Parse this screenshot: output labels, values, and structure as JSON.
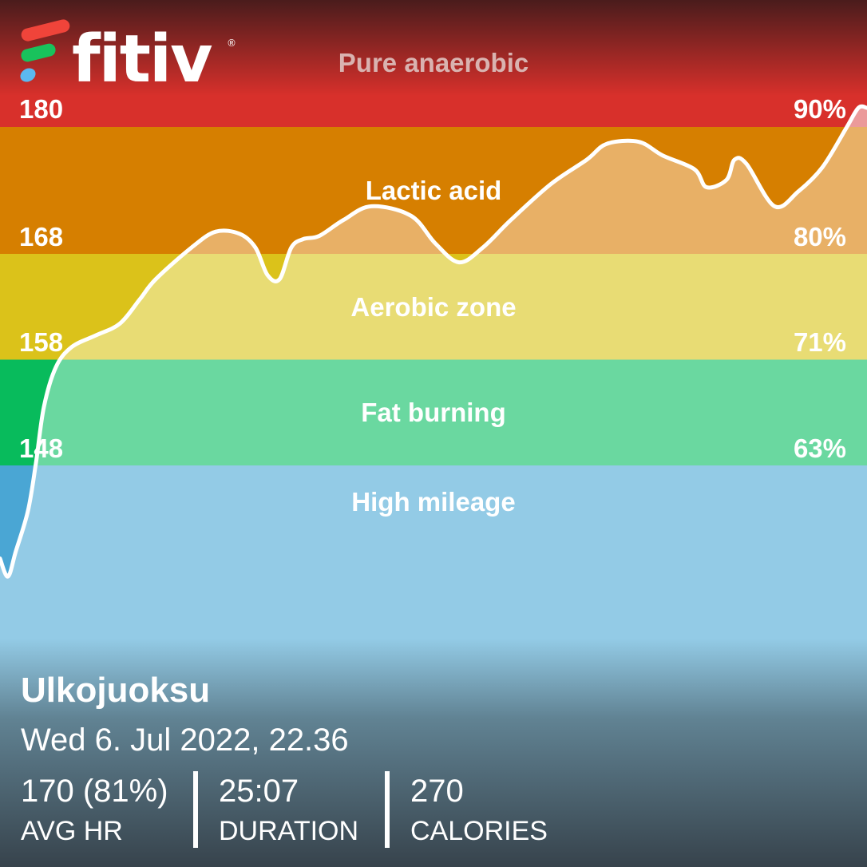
{
  "brand": {
    "name": "fitiv",
    "registered": "®",
    "logo_colors": [
      "#f0443a",
      "#19c25c",
      "#5bb8f0"
    ]
  },
  "chart_data": {
    "type": "area",
    "title": "",
    "xlabel": "",
    "ylabel": "",
    "x_unit": "minutes",
    "xlim": [
      0,
      25.12
    ],
    "ylim": [
      137,
      192
    ],
    "grid": false,
    "zones": [
      {
        "name": "Pure anaerobic",
        "min_hr": 180,
        "max_hr": 192,
        "color": "#d8302b",
        "fill_color": "#eb9a9a"
      },
      {
        "name": "Lactic acid",
        "min_hr": 168,
        "max_hr": 180,
        "color": "#d67f00",
        "fill_color": "#e8b066"
      },
      {
        "name": "Aerobic zone",
        "min_hr": 158,
        "max_hr": 168,
        "color": "#dbc21a",
        "fill_color": "#e8dc74"
      },
      {
        "name": "Fat burning",
        "min_hr": 148,
        "max_hr": 158,
        "color": "#08bb5c",
        "fill_color": "#6ad8a0"
      },
      {
        "name": "High mileage",
        "min_hr": 137,
        "max_hr": 148,
        "color": "#4aa6d4",
        "fill_color": "#93cbe6"
      }
    ],
    "hr_ticks": [
      {
        "hr": "180",
        "pct": "90%"
      },
      {
        "hr": "168",
        "pct": "80%"
      },
      {
        "hr": "158",
        "pct": "71%"
      },
      {
        "hr": "148",
        "pct": "63%"
      }
    ],
    "line_color": "#ffffff",
    "x": [
      0,
      0.23,
      0.46,
      0.81,
      1.04,
      1.27,
      1.62,
      2.08,
      2.78,
      3.47,
      4.05,
      4.51,
      5.55,
      6.25,
      6.94,
      7.4,
      7.75,
      8.1,
      8.44,
      8.79,
      9.25,
      9.95,
      10.76,
      11.91,
      12.61,
      13.3,
      13.99,
      14.8,
      15.96,
      17.0,
      17.58,
      18.5,
      19.2,
      20.12,
      20.47,
      21.05,
      21.28,
      21.63,
      22.44,
      23.13,
      23.83,
      24.52,
      24.87,
      25.12
    ],
    "y": [
      139.2,
      137.5,
      139.9,
      143.7,
      148.2,
      153.5,
      157.3,
      159.2,
      160.3,
      161.4,
      163.7,
      165.6,
      168.6,
      170.1,
      169.9,
      168.6,
      166.0,
      165.6,
      168.6,
      169.4,
      169.7,
      171.2,
      172.5,
      171.6,
      169.0,
      167.2,
      168.6,
      171.2,
      174.6,
      176.9,
      178.4,
      178.6,
      177.3,
      176.0,
      174.3,
      175.0,
      176.9,
      176.5,
      172.5,
      173.9,
      176.2,
      179.9,
      181.8,
      181.8
    ]
  },
  "workout": {
    "title": "Ulkojuoksu",
    "date": "Wed 6. Jul 2022, 22.36",
    "stats": [
      {
        "value": "170 (81%)",
        "label": "AVG HR"
      },
      {
        "value": "25:07",
        "label": "DURATION"
      },
      {
        "value": "270",
        "label": "CALORIES"
      }
    ]
  }
}
